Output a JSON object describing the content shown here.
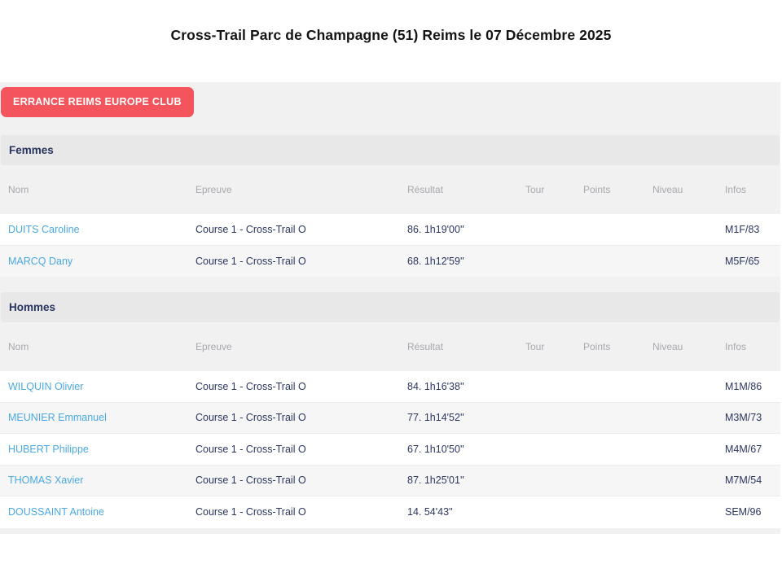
{
  "page": {
    "title": "Cross-Trail Parc de Champagne (51) Reims le 07 Décembre 2025"
  },
  "club": {
    "badge_label": "ERRANCE REIMS EUROPE CLUB",
    "badge_color": "#f4545c"
  },
  "columns": [
    "Nom",
    "Epreuve",
    "Résultat",
    "Tour",
    "Points",
    "Niveau",
    "Infos"
  ],
  "sections": [
    {
      "label": "Femmes",
      "rows": [
        {
          "nom": "DUITS Caroline",
          "epreuve": "Course 1 - Cross-Trail O",
          "resultat": "86. 1h19'00''",
          "tour": "",
          "points": "",
          "niveau": "",
          "infos": "M1F/83"
        },
        {
          "nom": "MARCQ Dany",
          "epreuve": "Course 1 - Cross-Trail O",
          "resultat": "68. 1h12'59''",
          "tour": "",
          "points": "",
          "niveau": "",
          "infos": "M5F/65"
        }
      ]
    },
    {
      "label": "Hommes",
      "rows": [
        {
          "nom": "WILQUIN Olivier",
          "epreuve": "Course 1 - Cross-Trail O",
          "resultat": "84. 1h16'38''",
          "tour": "",
          "points": "",
          "niveau": "",
          "infos": "M1M/86"
        },
        {
          "nom": "MEUNIER Emmanuel",
          "epreuve": "Course 1 - Cross-Trail O",
          "resultat": "77. 1h14'52''",
          "tour": "",
          "points": "",
          "niveau": "",
          "infos": "M3M/73"
        },
        {
          "nom": "HUBERT Philippe",
          "epreuve": "Course 1 - Cross-Trail O",
          "resultat": "67. 1h10'50''",
          "tour": "",
          "points": "",
          "niveau": "",
          "infos": "M4M/67"
        },
        {
          "nom": "THOMAS Xavier",
          "epreuve": "Course 1 - Cross-Trail O",
          "resultat": "87. 1h25'01''",
          "tour": "",
          "points": "",
          "niveau": "",
          "infos": "M7M/54"
        },
        {
          "nom": "DOUSSAINT Antoine",
          "epreuve": "Course 1 - Cross-Trail O",
          "resultat": "14. 54'43''",
          "tour": "",
          "points": "",
          "niveau": "",
          "infos": "SEM/96"
        }
      ]
    }
  ],
  "colors": {
    "badge_red": "#f4545c",
    "navy_text": "#2b3660",
    "link_blue": "#4aa9e2",
    "panel_gray": "#f1f1f2",
    "band_gray": "#e8e8e9"
  }
}
